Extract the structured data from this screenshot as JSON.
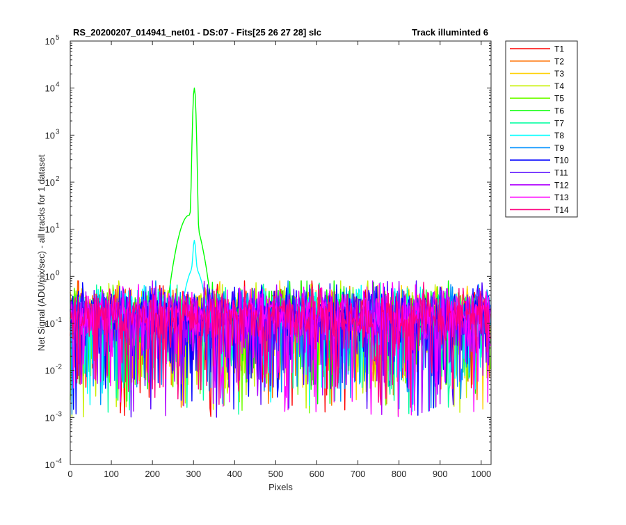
{
  "chart_data": {
    "type": "line",
    "title_left": "RS_20200207_014941_net01 - DS:07 - Fits[25  26  27  28]   slc",
    "title_right": "Track illuminted 6",
    "xlabel": "Pixels",
    "ylabel": "Net Signal (ADU/pix/sec) - all tracks for 1 dataset",
    "xlim": [
      0,
      1024
    ],
    "ylim": [
      0.0001,
      100000
    ],
    "yscale": "log",
    "grid": false,
    "legend_position": "outside-top-right",
    "x_ticks": [
      0,
      100,
      200,
      300,
      400,
      500,
      600,
      700,
      800,
      900,
      1000
    ],
    "y_ticks": [
      {
        "value": 0.0001,
        "base": "10",
        "exp": "-4"
      },
      {
        "value": 0.001,
        "base": "10",
        "exp": "-3"
      },
      {
        "value": 0.01,
        "base": "10",
        "exp": "-2"
      },
      {
        "value": 0.1,
        "base": "10",
        "exp": "-1"
      },
      {
        "value": 1,
        "base": "10",
        "exp": "0"
      },
      {
        "value": 10,
        "base": "10",
        "exp": "1"
      },
      {
        "value": 100,
        "base": "10",
        "exp": "2"
      },
      {
        "value": 1000,
        "base": "10",
        "exp": "3"
      },
      {
        "value": 10000,
        "base": "10",
        "exp": "4"
      },
      {
        "value": 100000,
        "base": "10",
        "exp": "5"
      }
    ],
    "noise": {
      "typical_min": 0.001,
      "typical_max": 0.8,
      "median": 0.15
    },
    "series": [
      {
        "name": "T1",
        "color": "#ff0000"
      },
      {
        "name": "T2",
        "color": "#ff7000"
      },
      {
        "name": "T3",
        "color": "#ffd000"
      },
      {
        "name": "T4",
        "color": "#c8f000"
      },
      {
        "name": "T5",
        "color": "#70ff00"
      },
      {
        "name": "T6",
        "color": "#00ff00",
        "peak": {
          "x": 302,
          "value": 10000,
          "shoulder_x": 290,
          "shoulder_value": 20
        }
      },
      {
        "name": "T7",
        "color": "#00ffa0"
      },
      {
        "name": "T8",
        "color": "#00ffff",
        "peak": {
          "x": 302,
          "value": 4.3
        }
      },
      {
        "name": "T9",
        "color": "#0090ff"
      },
      {
        "name": "T10",
        "color": "#0000ff"
      },
      {
        "name": "T11",
        "color": "#5000ff"
      },
      {
        "name": "T12",
        "color": "#b000ff"
      },
      {
        "name": "T13",
        "color": "#ff00ff"
      },
      {
        "name": "T14",
        "color": "#ff0080"
      }
    ]
  }
}
